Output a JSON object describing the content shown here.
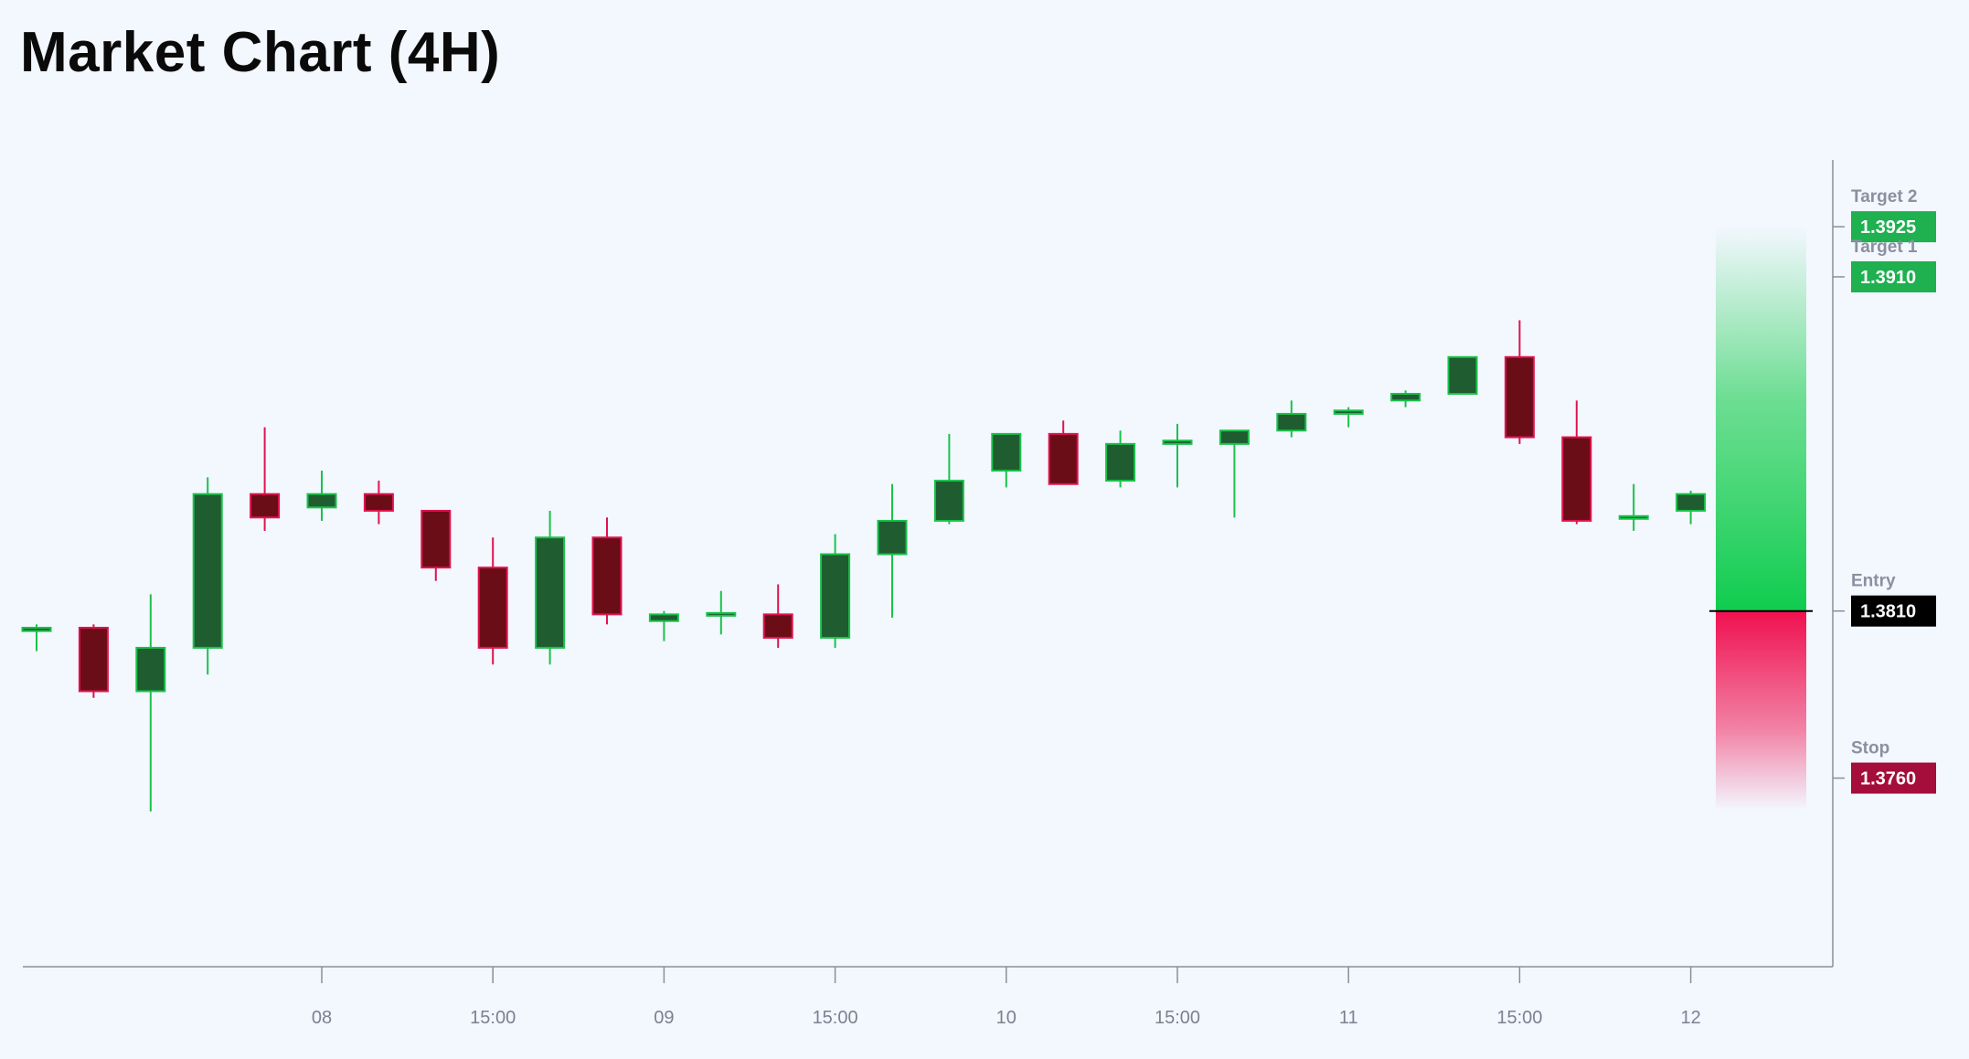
{
  "title": "Market Chart (4H)",
  "colors": {
    "background": "#f3f7fe",
    "axis": "#8a8f99",
    "tick_text": "#7b8190",
    "up_body": "#1f5c30",
    "up_wick": "#19c24a",
    "down_body": "#6b0d16",
    "down_wick": "#e0134f",
    "target_bg": "#1fb050",
    "entry_bg": "#000000",
    "stop_bg": "#a50d3a"
  },
  "chart_data": {
    "type": "candlestick",
    "title": "Market Chart (4H)",
    "ylim": [
      1.37,
      1.3945
    ],
    "x_ticks": [
      {
        "index": 5,
        "label": "08"
      },
      {
        "index": 8,
        "label": "15:00"
      },
      {
        "index": 11,
        "label": "09"
      },
      {
        "index": 14,
        "label": "15:00"
      },
      {
        "index": 17,
        "label": "10"
      },
      {
        "index": 20,
        "label": "15:00"
      },
      {
        "index": 23,
        "label": "11"
      },
      {
        "index": 26,
        "label": "15:00"
      },
      {
        "index": 29,
        "label": "12"
      }
    ],
    "candles": [
      {
        "o": 1.3804,
        "h": 1.3806,
        "l": 1.3798,
        "c": 1.3805
      },
      {
        "o": 1.3805,
        "h": 1.3806,
        "l": 1.3784,
        "c": 1.3786
      },
      {
        "o": 1.3786,
        "h": 1.3815,
        "l": 1.375,
        "c": 1.3799
      },
      {
        "o": 1.3799,
        "h": 1.385,
        "l": 1.3791,
        "c": 1.3845
      },
      {
        "o": 1.3845,
        "h": 1.3865,
        "l": 1.3834,
        "c": 1.3838
      },
      {
        "o": 1.3841,
        "h": 1.3852,
        "l": 1.3837,
        "c": 1.3845
      },
      {
        "o": 1.3845,
        "h": 1.3849,
        "l": 1.3836,
        "c": 1.384
      },
      {
        "o": 1.384,
        "h": 1.384,
        "l": 1.3819,
        "c": 1.3823
      },
      {
        "o": 1.3823,
        "h": 1.3832,
        "l": 1.3794,
        "c": 1.3799
      },
      {
        "o": 1.3799,
        "h": 1.384,
        "l": 1.3794,
        "c": 1.3832
      },
      {
        "o": 1.3832,
        "h": 1.3838,
        "l": 1.3806,
        "c": 1.3809
      },
      {
        "o": 1.3807,
        "h": 1.381,
        "l": 1.3801,
        "c": 1.3809
      },
      {
        "o": 1.3809,
        "h": 1.3816,
        "l": 1.3803,
        "c": 1.3809
      },
      {
        "o": 1.3809,
        "h": 1.3818,
        "l": 1.3799,
        "c": 1.3802
      },
      {
        "o": 1.3802,
        "h": 1.3833,
        "l": 1.3799,
        "c": 1.3827
      },
      {
        "o": 1.3827,
        "h": 1.3848,
        "l": 1.3808,
        "c": 1.3837
      },
      {
        "o": 1.3837,
        "h": 1.3863,
        "l": 1.3836,
        "c": 1.3849
      },
      {
        "o": 1.3852,
        "h": 1.3863,
        "l": 1.3847,
        "c": 1.3863
      },
      {
        "o": 1.3863,
        "h": 1.3867,
        "l": 1.3848,
        "c": 1.3848
      },
      {
        "o": 1.3849,
        "h": 1.3864,
        "l": 1.3847,
        "c": 1.386
      },
      {
        "o": 1.386,
        "h": 1.3866,
        "l": 1.3847,
        "c": 1.3861
      },
      {
        "o": 1.386,
        "h": 1.3864,
        "l": 1.3838,
        "c": 1.3864
      },
      {
        "o": 1.3864,
        "h": 1.3873,
        "l": 1.3862,
        "c": 1.3869
      },
      {
        "o": 1.3869,
        "h": 1.3871,
        "l": 1.3865,
        "c": 1.387
      },
      {
        "o": 1.3873,
        "h": 1.3876,
        "l": 1.3871,
        "c": 1.3875
      },
      {
        "o": 1.3875,
        "h": 1.3886,
        "l": 1.3875,
        "c": 1.3886
      },
      {
        "o": 1.3886,
        "h": 1.3897,
        "l": 1.386,
        "c": 1.3862
      },
      {
        "o": 1.3862,
        "h": 1.3873,
        "l": 1.3836,
        "c": 1.3837
      },
      {
        "o": 1.3838,
        "h": 1.3848,
        "l": 1.3834,
        "c": 1.3838
      },
      {
        "o": 1.384,
        "h": 1.3846,
        "l": 1.3836,
        "c": 1.3845
      }
    ],
    "levels": [
      {
        "name": "Target 2",
        "value": 1.3925,
        "label": "1.3925",
        "kind": "target"
      },
      {
        "name": "Target 1",
        "value": 1.391,
        "label": "1.3910",
        "kind": "target"
      },
      {
        "name": "Entry",
        "value": 1.381,
        "label": "1.3810",
        "kind": "entry"
      },
      {
        "name": "Stop",
        "value": 1.376,
        "label": "1.3760",
        "kind": "stop"
      }
    ],
    "zone": {
      "top": 1.3925,
      "entry": 1.381,
      "bottom": 1.376
    }
  }
}
